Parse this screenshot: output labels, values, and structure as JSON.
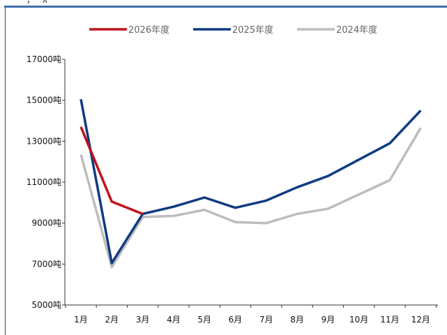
{
  "header_fragment": "一 ，  ′  ∧ ′",
  "chart_data": {
    "type": "line",
    "title": "",
    "xlabel": "",
    "ylabel": "",
    "categories": [
      "1月",
      "2月",
      "3月",
      "4月",
      "5月",
      "6月",
      "7月",
      "8月",
      "9月",
      "10月",
      "11月",
      "12月"
    ],
    "y_ticks": [
      "5000吨",
      "7000吨",
      "9000吨",
      "11000吨",
      "13000吨",
      "15000吨",
      "17000吨"
    ],
    "ylim": [
      5000,
      17000
    ],
    "grid": false,
    "legend_position": "top",
    "series": [
      {
        "name": "2026年度",
        "color": "#c0121c",
        "values": [
          13700,
          10050,
          9450,
          null,
          null,
          null,
          null,
          null,
          null,
          null,
          null,
          null
        ]
      },
      {
        "name": "2025年度",
        "color": "#0f3b82",
        "values": [
          15050,
          7050,
          9450,
          9800,
          10250,
          9750,
          10100,
          10750,
          11300,
          12100,
          12900,
          14500
        ]
      },
      {
        "name": "2024年度",
        "color": "#bdbdbd",
        "values": [
          12350,
          6850,
          9300,
          9350,
          9650,
          9050,
          9000,
          9450,
          9700,
          10400,
          11100,
          13650
        ]
      }
    ]
  }
}
